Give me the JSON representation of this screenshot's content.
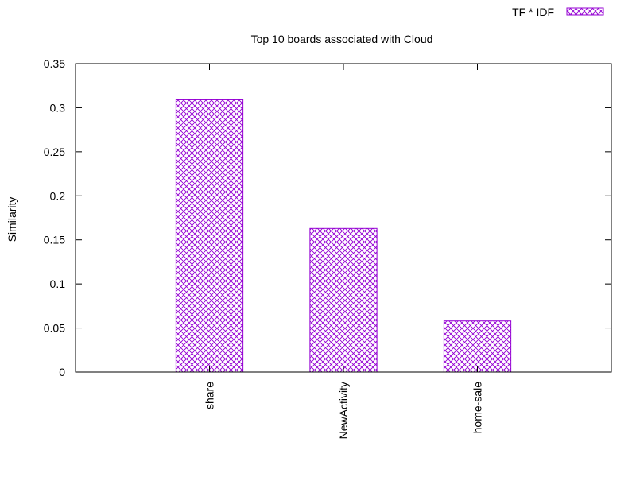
{
  "chart_data": {
    "type": "bar",
    "title": "Top 10 boards associated with Cloud",
    "xlabel": "",
    "ylabel": "Similarity",
    "categories": [
      "share",
      "NewActivity",
      "home-sale"
    ],
    "series": [
      {
        "name": "TF * IDF",
        "values": [
          0.309,
          0.163,
          0.058
        ]
      }
    ],
    "ylim": [
      0,
      0.35
    ],
    "yticks": [
      "0",
      "0.05",
      "0.1",
      "0.15",
      "0.2",
      "0.25",
      "0.3",
      "0.35"
    ],
    "xlim": [
      -1,
      3
    ],
    "grid": false,
    "legend": "top-right",
    "bar_color": "#9400d3",
    "bar_pattern": "crosshatch"
  }
}
